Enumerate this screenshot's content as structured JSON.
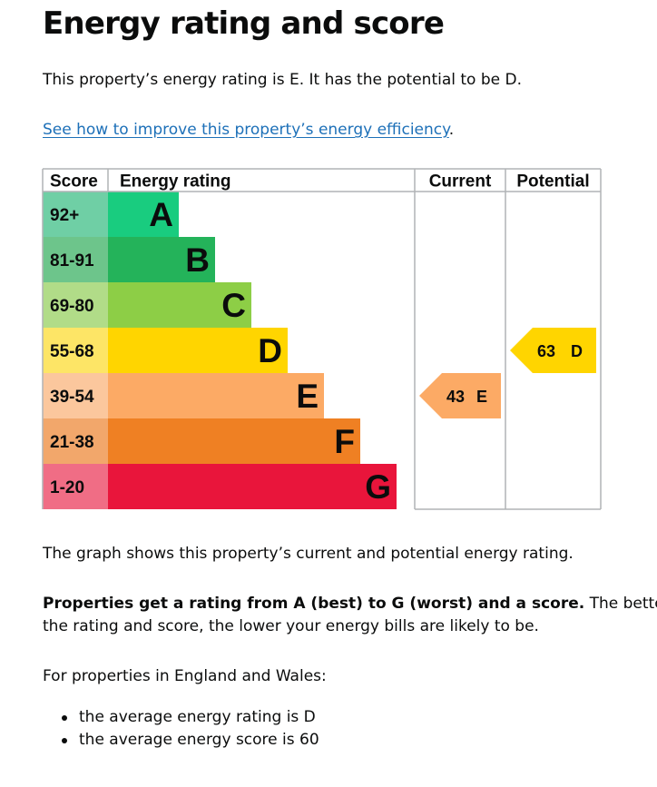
{
  "title": "Energy rating and score",
  "intro": "This property’s energy rating is E. It has the potential to be D.",
  "improve_link": "See how to improve this property’s energy efficiency",
  "improve_link_suffix": ".",
  "graph_caption": "The graph shows this property’s current and potential energy rating.",
  "rating_info_bold": "Properties get a rating from A (best) to G (worst) and a score.",
  "rating_info_rest_line1": " The better",
  "rating_info_line2": "the rating and score, the lower your energy bills are likely to be.",
  "average_intro": "For properties in England and Wales:",
  "bullets": [
    "the average energy rating is D",
    "the average energy score is 60"
  ],
  "chart_data": {
    "type": "bar",
    "headers": {
      "score": "Score",
      "rating": "Energy rating",
      "current": "Current",
      "potential": "Potential"
    },
    "bands": [
      {
        "letter": "A",
        "range": "92+",
        "color": "#19cc7f",
        "score_bg": "#6fcfa5",
        "score_dark": true
      },
      {
        "letter": "B",
        "range": "81-91",
        "color": "#24b35a",
        "score_bg": "#6dc58b",
        "score_dark": true
      },
      {
        "letter": "C",
        "range": "69-80",
        "color": "#8dce46",
        "score_bg": "#b1dc88",
        "score_dark": true
      },
      {
        "letter": "D",
        "range": "55-68",
        "color": "#ffd500",
        "score_bg": "#fde566",
        "score_dark": true
      },
      {
        "letter": "E",
        "range": "39-54",
        "color": "#fcaa65",
        "score_bg": "#fbc79d",
        "score_dark": true
      },
      {
        "letter": "F",
        "range": "21-38",
        "color": "#ef8023",
        "score_bg": "#f2a76b",
        "score_dark": true
      },
      {
        "letter": "G",
        "range": "1-20",
        "color": "#e9153b",
        "score_bg": "#f06d85",
        "score_dark": true
      }
    ],
    "current": {
      "score": 43,
      "letter": "E",
      "color": "#fcaa65"
    },
    "potential": {
      "score": 63,
      "letter": "D",
      "color": "#ffd500"
    }
  }
}
